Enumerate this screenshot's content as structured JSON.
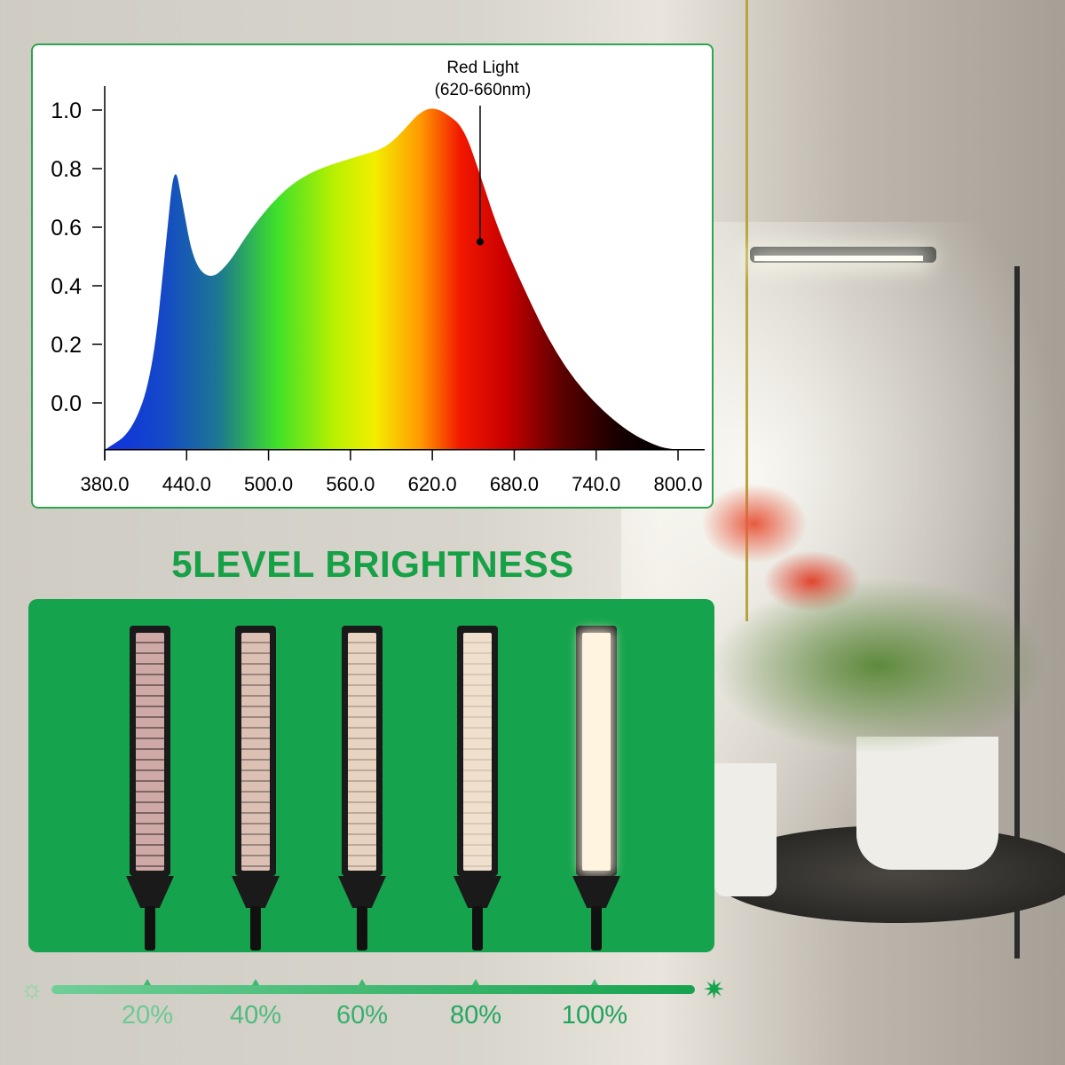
{
  "chart_data": {
    "type": "area",
    "title": "",
    "xlabel": "",
    "ylabel": "",
    "xlim": [
      380,
      800
    ],
    "ylim": [
      -0.16,
      1.05
    ],
    "x_ticks": [
      "380.0",
      "440.0",
      "500.0",
      "560.0",
      "620.0",
      "680.0",
      "740.0",
      "800.0"
    ],
    "y_ticks": [
      "1.0",
      "0.8",
      "0.6",
      "0.4",
      "0.2",
      "0.0"
    ],
    "grid": false,
    "fill": "visible-spectrum gradient",
    "x": [
      380,
      400,
      415,
      425,
      431,
      437,
      445,
      457,
      470,
      485,
      500,
      515,
      532,
      550,
      571,
      585,
      597,
      610,
      620,
      630,
      643,
      655,
      669,
      690,
      708,
      730,
      760,
      785,
      799
    ],
    "y": [
      -0.16,
      -0.1,
      0.1,
      0.55,
      0.83,
      0.68,
      0.48,
      0.42,
      0.47,
      0.58,
      0.67,
      0.74,
      0.79,
      0.82,
      0.85,
      0.87,
      0.92,
      0.99,
      1.01,
      0.99,
      0.94,
      0.78,
      0.58,
      0.36,
      0.19,
      0.04,
      -0.09,
      -0.15,
      -0.16
    ],
    "annotation": {
      "line1": "Red Light",
      "line2": "(620-660nm)",
      "x": 655,
      "y": 0.55
    }
  },
  "heading": "5LEVEL BRIGHTNESS",
  "lamps": [
    {
      "level": 20,
      "color": "#cfa9a5"
    },
    {
      "level": 40,
      "color": "#dcc0b4"
    },
    {
      "level": 60,
      "color": "#e8d3c0"
    },
    {
      "level": 80,
      "color": "#efdfcc"
    },
    {
      "level": 100,
      "color": "#fff4e0"
    }
  ],
  "slider": {
    "labels": [
      "20%",
      "40%",
      "60%",
      "80%",
      "100%"
    ],
    "min_icon": "sun-dim-icon",
    "max_icon": "sun-bright-icon",
    "accent": "#16a34d"
  }
}
